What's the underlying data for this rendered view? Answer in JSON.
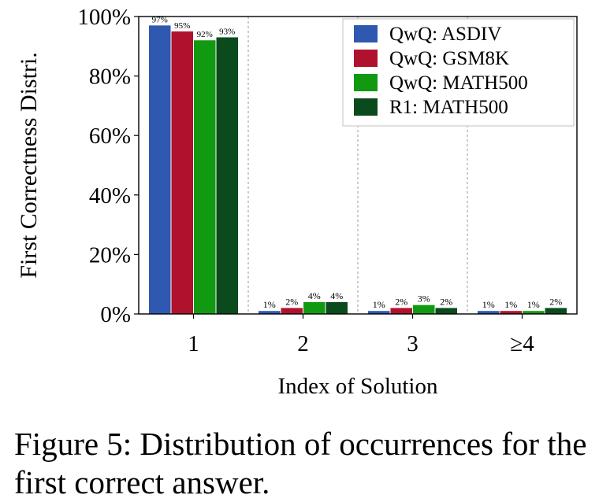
{
  "chart_data": {
    "type": "bar",
    "categories": [
      "1",
      "2",
      "3",
      "≥4"
    ],
    "series": [
      {
        "name": "QwQ: ASDIV",
        "color": "#2f58b0",
        "values": [
          97,
          1,
          1,
          1
        ],
        "labels": [
          "97%",
          "1%",
          "1%",
          "1%"
        ]
      },
      {
        "name": "QwQ: GSM8K",
        "color": "#b0122e",
        "values": [
          95,
          2,
          2,
          1
        ],
        "labels": [
          "95%",
          "2%",
          "2%",
          "1%"
        ]
      },
      {
        "name": "QwQ: MATH500",
        "color": "#119a11",
        "values": [
          92,
          4,
          3,
          1
        ],
        "labels": [
          "92%",
          "4%",
          "3%",
          "1%"
        ]
      },
      {
        "name": "R1: MATH500",
        "color": "#0b4a1c",
        "values": [
          93,
          4,
          2,
          2
        ],
        "labels": [
          "93%",
          "4%",
          "2%",
          "2%"
        ]
      }
    ],
    "xlabel": "Index of Solution",
    "ylabel": "First Correctness Distri.",
    "ylim": [
      0,
      100
    ],
    "yticks": [
      0,
      20,
      40,
      60,
      80,
      100
    ],
    "ytick_labels": [
      "0%",
      "20%",
      "40%",
      "60%",
      "80%",
      "100%"
    ],
    "grid": "vertical dashed separators",
    "legend_position": "top-right"
  },
  "caption": "Figure 5: Distribution of occurrences for the first correct answer."
}
